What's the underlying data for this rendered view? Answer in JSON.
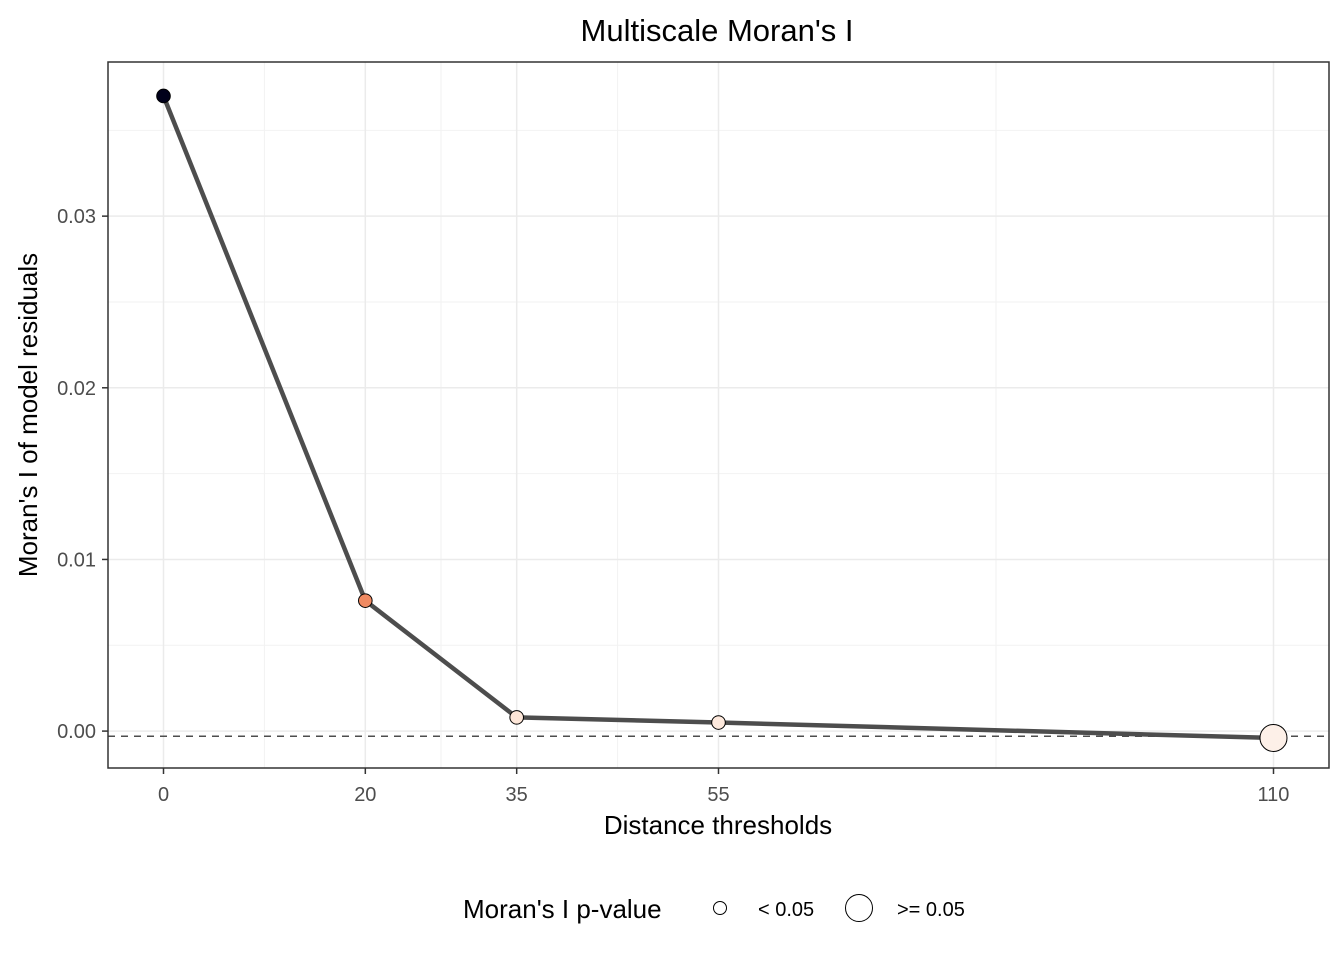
{
  "chart_data": {
    "type": "line",
    "title": "Multiscale Moran's I",
    "xlabel": "Distance thresholds",
    "ylabel": "Moran's I of model residuals",
    "x_ticks": [
      0,
      20,
      35,
      55,
      110
    ],
    "x_tick_labels": [
      "0",
      "20",
      "35",
      "55",
      "110"
    ],
    "y_ticks": [
      0.0,
      0.01,
      0.02,
      0.03
    ],
    "y_tick_labels": [
      "0.00",
      "0.01",
      "0.02",
      "0.03"
    ],
    "xlim": [
      -5.5,
      115.5
    ],
    "ylim": [
      -0.00215,
      0.03898
    ],
    "grid": true,
    "reference_line": {
      "y": -0.0003,
      "style": "dashed"
    },
    "series": [
      {
        "x": [
          0,
          20,
          35,
          55,
          110
        ],
        "y": [
          0.037,
          0.0076,
          0.0008,
          0.0005,
          -0.0004
        ],
        "p_value_group": [
          "< 0.05",
          "< 0.05",
          "< 0.05",
          "< 0.05",
          ">= 0.05"
        ],
        "point_colors": [
          "#00001a",
          "#ef8a62",
          "#fde6d8",
          "#fde9dd",
          "#fdf0e8"
        ],
        "line_color": "#4d4d4d"
      }
    ],
    "legend": {
      "title": "Moran's I p-value",
      "placement": "bottom",
      "entries": [
        {
          "label": "< 0.05",
          "size": "small"
        },
        {
          "label": ">= 0.05",
          "size": "large"
        }
      ]
    }
  }
}
